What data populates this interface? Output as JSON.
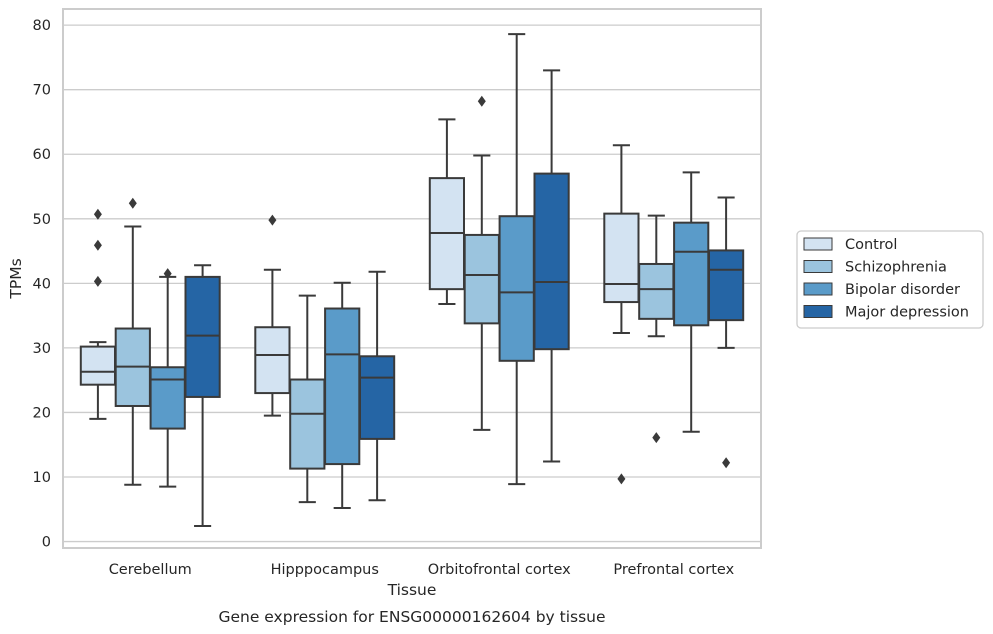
{
  "chart_data": {
    "type": "box",
    "caption": "Gene expression for ENSG00000162604 by tissue",
    "xlabel": "Tissue",
    "ylabel": "TPMs",
    "ylim": [
      -1,
      82.5
    ],
    "yticks": [
      0,
      10,
      20,
      30,
      40,
      50,
      60,
      70,
      80
    ],
    "grid": "horizontal",
    "legend_position": "right",
    "categories": [
      "Cerebellum",
      "Hipppocampus",
      "Orbitofrontal cortex",
      "Prefrontal cortex"
    ],
    "series": [
      {
        "name": "Control",
        "color": "#d3e3f2",
        "boxes": [
          {
            "whislo": 19.0,
            "q1": 24.3,
            "med": 26.3,
            "q3": 30.2,
            "whishi": 30.9,
            "fliers": [
              40.3,
              45.9,
              50.7
            ]
          },
          {
            "whislo": 19.5,
            "q1": 23.0,
            "med": 28.9,
            "q3": 33.2,
            "whishi": 42.1,
            "fliers": [
              49.8
            ]
          },
          {
            "whislo": 36.8,
            "q1": 39.1,
            "med": 47.8,
            "q3": 56.3,
            "whishi": 65.4,
            "fliers": []
          },
          {
            "whislo": 32.3,
            "q1": 37.1,
            "med": 39.9,
            "q3": 50.8,
            "whishi": 61.4,
            "fliers": [
              9.7
            ]
          }
        ]
      },
      {
        "name": "Schizophrenia",
        "color": "#9bc4de",
        "boxes": [
          {
            "whislo": 8.8,
            "q1": 21.0,
            "med": 27.1,
            "q3": 33.0,
            "whishi": 48.8,
            "fliers": [
              52.4
            ]
          },
          {
            "whislo": 6.1,
            "q1": 11.3,
            "med": 19.8,
            "q3": 25.1,
            "whishi": 38.1,
            "fliers": []
          },
          {
            "whislo": 17.3,
            "q1": 33.8,
            "med": 41.3,
            "q3": 47.5,
            "whishi": 59.8,
            "fliers": [
              68.2
            ]
          },
          {
            "whislo": 31.8,
            "q1": 34.5,
            "med": 39.1,
            "q3": 43.0,
            "whishi": 50.5,
            "fliers": [
              16.1
            ]
          }
        ]
      },
      {
        "name": "Bipolar disorder",
        "color": "#5a9bc9",
        "boxes": [
          {
            "whislo": 8.5,
            "q1": 17.5,
            "med": 25.1,
            "q3": 27.0,
            "whishi": 41.0,
            "fliers": [
              41.5
            ]
          },
          {
            "whislo": 5.2,
            "q1": 12.0,
            "med": 29.0,
            "q3": 36.1,
            "whishi": 40.1,
            "fliers": []
          },
          {
            "whislo": 8.9,
            "q1": 28.0,
            "med": 38.6,
            "q3": 50.4,
            "whishi": 78.6,
            "fliers": []
          },
          {
            "whislo": 17.0,
            "q1": 33.5,
            "med": 44.9,
            "q3": 49.4,
            "whishi": 57.2,
            "fliers": []
          }
        ]
      },
      {
        "name": "Major depression",
        "color": "#2565a5",
        "boxes": [
          {
            "whislo": 2.4,
            "q1": 22.4,
            "med": 31.9,
            "q3": 41.0,
            "whishi": 42.8,
            "fliers": []
          },
          {
            "whislo": 6.4,
            "q1": 15.9,
            "med": 25.4,
            "q3": 28.7,
            "whishi": 41.8,
            "fliers": []
          },
          {
            "whislo": 12.4,
            "q1": 29.8,
            "med": 40.2,
            "q3": 57.0,
            "whishi": 73.0,
            "fliers": []
          },
          {
            "whislo": 30.0,
            "q1": 34.3,
            "med": 42.1,
            "q3": 45.1,
            "whishi": 53.3,
            "fliers": [
              12.2
            ]
          }
        ]
      }
    ]
  }
}
